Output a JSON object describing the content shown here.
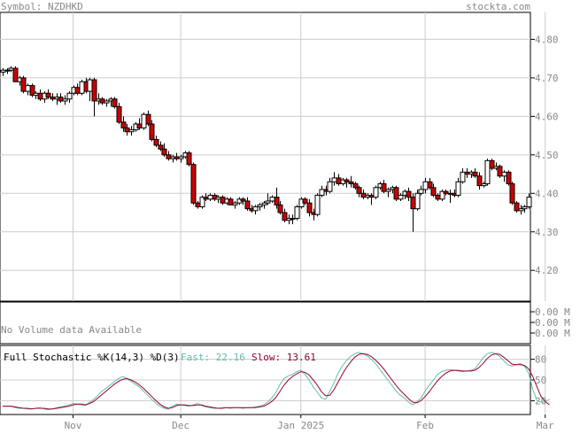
{
  "header": {
    "symbol_label": "Symbol: NZDHKD",
    "watermark": "stockta.com"
  },
  "colors": {
    "frame": "#000000",
    "grid": "#cccccc",
    "text_gray": "#888888",
    "up_candle": "#ffffff",
    "down_candle": "#cc0000",
    "fast_line": "#66bbaa",
    "slow_line": "#990033"
  },
  "volume_panel": {
    "message": "No Volume data Available",
    "axis_labels": [
      "0.00 M",
      "0.00 M",
      "0.00 M"
    ]
  },
  "stoch_panel": {
    "title": "Full Stochastic %K(14,3) %D(3)",
    "fast_label": "Fast: 22.16",
    "slow_label": "Slow: 13.61",
    "axis_labels": [
      "80",
      "50",
      "20"
    ]
  },
  "chart_data": [
    {
      "type": "candlestick",
      "title": "Symbol: NZDHKD",
      "ylim": [
        4.12,
        4.87
      ],
      "y_ticks": [
        4.8,
        4.7,
        4.6,
        4.5,
        4.4,
        4.3,
        4.2
      ],
      "y_tick_labels": [
        "4.80",
        "4.70",
        "4.60",
        "4.50",
        "4.40",
        "4.30",
        "4.20"
      ],
      "x_tick_labels": [
        "Nov",
        "Dec",
        "Jan 2025",
        "Feb",
        "Mar"
      ],
      "x_tick_indices": [
        17,
        43,
        72,
        102,
        131
      ],
      "grid": true,
      "ohlc": [
        [
          4.715,
          4.725,
          4.705,
          4.72
        ],
        [
          4.72,
          4.725,
          4.71,
          4.72
        ],
        [
          4.72,
          4.73,
          4.715,
          4.725
        ],
        [
          4.725,
          4.73,
          4.69,
          4.69
        ],
        [
          4.69,
          4.705,
          4.68,
          4.7
        ],
        [
          4.7,
          4.705,
          4.66,
          4.665
        ],
        [
          4.665,
          4.685,
          4.655,
          4.68
        ],
        [
          4.68,
          4.685,
          4.65,
          4.655
        ],
        [
          4.655,
          4.665,
          4.645,
          4.66
        ],
        [
          4.66,
          4.67,
          4.64,
          4.645
        ],
        [
          4.645,
          4.665,
          4.635,
          4.66
        ],
        [
          4.66,
          4.67,
          4.645,
          4.65
        ],
        [
          4.65,
          4.66,
          4.64,
          4.645
        ],
        [
          4.645,
          4.66,
          4.63,
          4.65
        ],
        [
          4.65,
          4.66,
          4.635,
          4.64
        ],
        [
          4.64,
          4.655,
          4.63,
          4.645
        ],
        [
          4.645,
          4.665,
          4.635,
          4.66
        ],
        [
          4.66,
          4.68,
          4.655,
          4.675
        ],
        [
          4.675,
          4.685,
          4.655,
          4.66
        ],
        [
          4.66,
          4.695,
          4.655,
          4.69
        ],
        [
          4.69,
          4.7,
          4.66,
          4.665
        ],
        [
          4.665,
          4.7,
          4.64,
          4.695
        ],
        [
          4.695,
          4.7,
          4.6,
          4.64
        ],
        [
          4.64,
          4.66,
          4.63,
          4.645
        ],
        [
          4.645,
          4.65,
          4.63,
          4.635
        ],
        [
          4.635,
          4.645,
          4.625,
          4.64
        ],
        [
          4.64,
          4.65,
          4.625,
          4.645
        ],
        [
          4.645,
          4.65,
          4.62,
          4.625
        ],
        [
          4.625,
          4.635,
          4.58,
          4.585
        ],
        [
          4.585,
          4.6,
          4.56,
          4.57
        ],
        [
          4.57,
          4.58,
          4.55,
          4.56
        ],
        [
          4.56,
          4.575,
          4.55,
          4.565
        ],
        [
          4.565,
          4.585,
          4.56,
          4.58
        ],
        [
          4.58,
          4.595,
          4.565,
          4.57
        ],
        [
          4.57,
          4.61,
          4.565,
          4.605
        ],
        [
          4.605,
          4.615,
          4.575,
          4.58
        ],
        [
          4.58,
          4.59,
          4.535,
          4.54
        ],
        [
          4.54,
          4.55,
          4.52,
          4.525
        ],
        [
          4.525,
          4.535,
          4.51,
          4.515
        ],
        [
          4.515,
          4.53,
          4.495,
          4.5
        ],
        [
          4.5,
          4.51,
          4.485,
          4.49
        ],
        [
          4.49,
          4.5,
          4.48,
          4.495
        ],
        [
          4.495,
          4.505,
          4.485,
          4.49
        ],
        [
          4.49,
          4.5,
          4.48,
          4.495
        ],
        [
          4.495,
          4.51,
          4.49,
          4.505
        ],
        [
          4.505,
          4.51,
          4.47,
          4.475
        ],
        [
          4.475,
          4.48,
          4.37,
          4.375
        ],
        [
          4.375,
          4.38,
          4.36,
          4.365
        ],
        [
          4.365,
          4.395,
          4.36,
          4.39
        ],
        [
          4.39,
          4.4,
          4.38,
          4.385
        ],
        [
          4.385,
          4.4,
          4.38,
          4.395
        ],
        [
          4.395,
          4.4,
          4.38,
          4.385
        ],
        [
          4.385,
          4.395,
          4.375,
          4.39
        ],
        [
          4.39,
          4.395,
          4.37,
          4.375
        ],
        [
          4.375,
          4.39,
          4.37,
          4.385
        ],
        [
          4.385,
          4.39,
          4.37,
          4.37
        ],
        [
          4.37,
          4.38,
          4.36,
          4.375
        ],
        [
          4.375,
          4.39,
          4.37,
          4.385
        ],
        [
          4.385,
          4.39,
          4.37,
          4.38
        ],
        [
          4.38,
          4.39,
          4.355,
          4.36
        ],
        [
          4.36,
          4.37,
          4.35,
          4.355
        ],
        [
          4.355,
          4.37,
          4.345,
          4.365
        ],
        [
          4.365,
          4.375,
          4.355,
          4.37
        ],
        [
          4.37,
          4.38,
          4.36,
          4.375
        ],
        [
          4.375,
          4.4,
          4.37,
          4.38
        ],
        [
          4.38,
          4.395,
          4.375,
          4.39
        ],
        [
          4.39,
          4.415,
          4.36,
          4.37
        ],
        [
          4.37,
          4.38,
          4.345,
          4.35
        ],
        [
          4.35,
          4.36,
          4.325,
          4.33
        ],
        [
          4.33,
          4.345,
          4.32,
          4.335
        ],
        [
          4.335,
          4.345,
          4.32,
          4.335
        ],
        [
          4.335,
          4.37,
          4.33,
          4.365
        ],
        [
          4.365,
          4.39,
          4.36,
          4.385
        ],
        [
          4.385,
          4.39,
          4.37,
          4.375
        ],
        [
          4.375,
          4.385,
          4.34,
          4.35
        ],
        [
          4.35,
          4.36,
          4.33,
          4.345
        ],
        [
          4.345,
          4.4,
          4.34,
          4.395
        ],
        [
          4.395,
          4.42,
          4.39,
          4.41
        ],
        [
          4.41,
          4.42,
          4.395,
          4.405
        ],
        [
          4.405,
          4.44,
          4.4,
          4.43
        ],
        [
          4.43,
          4.455,
          4.42,
          4.44
        ],
        [
          4.44,
          4.45,
          4.42,
          4.425
        ],
        [
          4.425,
          4.44,
          4.42,
          4.435
        ],
        [
          4.435,
          4.44,
          4.415,
          4.43
        ],
        [
          4.43,
          4.445,
          4.415,
          4.425
        ],
        [
          4.425,
          4.43,
          4.41,
          4.415
        ],
        [
          4.415,
          4.42,
          4.39,
          4.4
        ],
        [
          4.4,
          4.41,
          4.385,
          4.39
        ],
        [
          4.39,
          4.4,
          4.385,
          4.395
        ],
        [
          4.395,
          4.4,
          4.37,
          4.39
        ],
        [
          4.39,
          4.42,
          4.385,
          4.415
        ],
        [
          4.415,
          4.43,
          4.41,
          4.425
        ],
        [
          4.425,
          4.435,
          4.4,
          4.405
        ],
        [
          4.405,
          4.415,
          4.39,
          4.41
        ],
        [
          4.41,
          4.42,
          4.4,
          4.415
        ],
        [
          4.415,
          4.42,
          4.38,
          4.385
        ],
        [
          4.385,
          4.4,
          4.38,
          4.395
        ],
        [
          4.395,
          4.41,
          4.385,
          4.405
        ],
        [
          4.405,
          4.415,
          4.38,
          4.39
        ],
        [
          4.39,
          4.4,
          4.3,
          4.36
        ],
        [
          4.36,
          4.41,
          4.355,
          4.4
        ],
        [
          4.4,
          4.42,
          4.395,
          4.41
        ],
        [
          4.41,
          4.44,
          4.4,
          4.43
        ],
        [
          4.43,
          4.44,
          4.41,
          4.415
        ],
        [
          4.415,
          4.425,
          4.39,
          4.395
        ],
        [
          4.395,
          4.4,
          4.38,
          4.385
        ],
        [
          4.385,
          4.41,
          4.38,
          4.405
        ],
        [
          4.405,
          4.41,
          4.395,
          4.4
        ],
        [
          4.4,
          4.41,
          4.375,
          4.4
        ],
        [
          4.4,
          4.41,
          4.39,
          4.395
        ],
        [
          4.395,
          4.44,
          4.39,
          4.43
        ],
        [
          4.43,
          4.465,
          4.425,
          4.455
        ],
        [
          4.455,
          4.465,
          4.44,
          4.45
        ],
        [
          4.45,
          4.46,
          4.44,
          4.455
        ],
        [
          4.455,
          4.465,
          4.44,
          4.445
        ],
        [
          4.445,
          4.455,
          4.41,
          4.42
        ],
        [
          4.42,
          4.43,
          4.415,
          4.425
        ],
        [
          4.425,
          4.49,
          4.42,
          4.485
        ],
        [
          4.485,
          4.49,
          4.46,
          4.465
        ],
        [
          4.465,
          4.48,
          4.46,
          4.47
        ],
        [
          4.47,
          4.475,
          4.44,
          4.445
        ],
        [
          4.445,
          4.46,
          4.43,
          4.455
        ],
        [
          4.455,
          4.46,
          4.42,
          4.425
        ],
        [
          4.425,
          4.43,
          4.37,
          4.375
        ],
        [
          4.375,
          4.38,
          4.35,
          4.355
        ],
        [
          4.355,
          4.37,
          4.345,
          4.36
        ],
        [
          4.36,
          4.37,
          4.35,
          4.365
        ],
        [
          4.365,
          4.4,
          4.36,
          4.39
        ]
      ]
    },
    {
      "type": "line",
      "title": "Full Stochastic %K(14,3) %D(3)",
      "ylim": [
        0,
        100
      ],
      "y_ticks": [
        80,
        50,
        20
      ],
      "series": [
        {
          "name": "Fast",
          "values": [
            12,
            12,
            12,
            10,
            9,
            9,
            8,
            8,
            9,
            10,
            8,
            7,
            8,
            10,
            11,
            12,
            14,
            16,
            15,
            14,
            13,
            18,
            22,
            28,
            34,
            38,
            43,
            48,
            52,
            55,
            52,
            48,
            44,
            40,
            34,
            28,
            22,
            16,
            12,
            9,
            8,
            12,
            15,
            14,
            13,
            12,
            14,
            16,
            13,
            11,
            10,
            9,
            9,
            10,
            10,
            9,
            10,
            10,
            9,
            10,
            10,
            11,
            12,
            14,
            18,
            24,
            32,
            44,
            52,
            56,
            58,
            62,
            64,
            58,
            50,
            40,
            32,
            24,
            22,
            34,
            46,
            60,
            70,
            78,
            84,
            88,
            90,
            88,
            85,
            80,
            74,
            66,
            58,
            50,
            42,
            34,
            28,
            24,
            18,
            14,
            18,
            24,
            34,
            42,
            50,
            58,
            62,
            64,
            65,
            64,
            63,
            62,
            63,
            64,
            66,
            74,
            82,
            88,
            90,
            88,
            84,
            78,
            72,
            70,
            72,
            74,
            70,
            60,
            36,
            20,
            18,
            18,
            22
          ]
        },
        {
          "name": "Slow",
          "values": [
            12,
            12,
            12,
            11,
            10,
            9,
            9,
            8,
            9,
            9,
            9,
            8,
            8,
            9,
            10,
            11,
            12,
            14,
            15,
            15,
            14,
            16,
            19,
            24,
            29,
            34,
            39,
            44,
            48,
            51,
            52,
            50,
            47,
            43,
            38,
            32,
            26,
            20,
            15,
            11,
            9,
            10,
            13,
            14,
            14,
            13,
            13,
            14,
            14,
            12,
            11,
            10,
            9,
            9,
            10,
            10,
            10,
            10,
            10,
            10,
            10,
            10,
            11,
            12,
            15,
            19,
            25,
            34,
            43,
            50,
            55,
            59,
            62,
            61,
            57,
            50,
            42,
            33,
            27,
            28,
            36,
            47,
            58,
            68,
            76,
            83,
            87,
            88,
            87,
            84,
            79,
            73,
            66,
            58,
            50,
            42,
            35,
            29,
            23,
            18,
            17,
            20,
            26,
            33,
            41,
            49,
            55,
            60,
            63,
            64,
            64,
            63,
            63,
            63,
            64,
            68,
            74,
            81,
            86,
            88,
            87,
            83,
            78,
            73,
            72,
            72,
            71,
            66,
            55,
            40,
            26,
            19,
            14
          ]
        }
      ]
    }
  ]
}
